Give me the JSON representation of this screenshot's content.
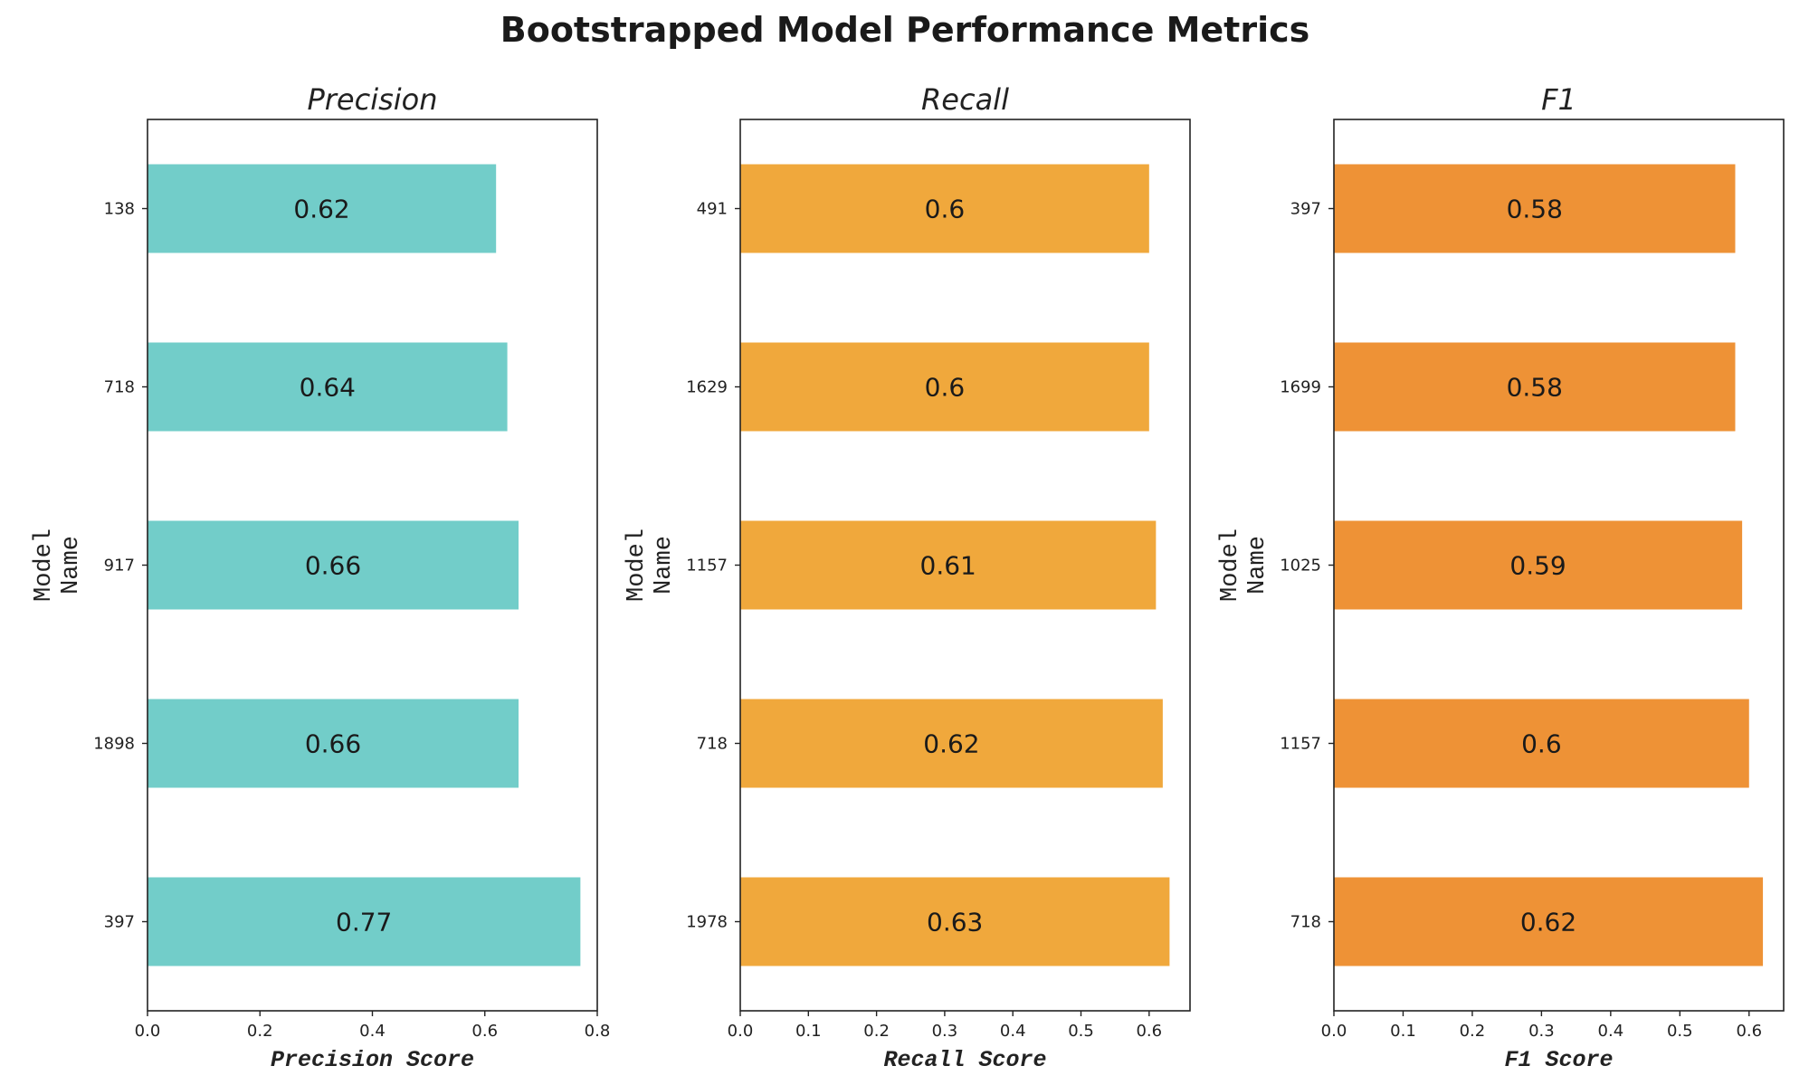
{
  "title": "Bootstrapped Model Performance Metrics",
  "chart_data": [
    {
      "type": "bar",
      "orientation": "horizontal",
      "title": "Precision",
      "xlabel": "Precision Score",
      "ylabel": "Model Name",
      "xlim": [
        0,
        0.8
      ],
      "xticks": [
        "0.0",
        "0.2",
        "0.4",
        "0.6",
        "0.8"
      ],
      "categories": [
        "138",
        "718",
        "917",
        "1898",
        "397"
      ],
      "values": [
        0.62,
        0.64,
        0.66,
        0.66,
        0.77
      ],
      "data_labels": [
        "0.62",
        "0.64",
        "0.66",
        "0.66",
        "0.77"
      ],
      "color": "#72cdc9",
      "grid": false
    },
    {
      "type": "bar",
      "orientation": "horizontal",
      "title": "Recall",
      "xlabel": "Recall Score",
      "ylabel": "Model Name",
      "xlim": [
        0,
        0.66
      ],
      "xticks": [
        "0.0",
        "0.1",
        "0.2",
        "0.3",
        "0.4",
        "0.5",
        "0.6"
      ],
      "categories": [
        "491",
        "1629",
        "1157",
        "718",
        "1978"
      ],
      "values": [
        0.6,
        0.6,
        0.61,
        0.62,
        0.63
      ],
      "data_labels": [
        "0.6",
        "0.6",
        "0.61",
        "0.62",
        "0.63"
      ],
      "color": "#f0a83c",
      "grid": false
    },
    {
      "type": "bar",
      "orientation": "horizontal",
      "title": "F1",
      "xlabel": "F1 Score",
      "ylabel": "Model Name",
      "xlim": [
        0,
        0.65
      ],
      "xticks": [
        "0.0",
        "0.1",
        "0.2",
        "0.3",
        "0.4",
        "0.5",
        "0.6"
      ],
      "categories": [
        "397",
        "1699",
        "1025",
        "1157",
        "718"
      ],
      "values": [
        0.58,
        0.58,
        0.59,
        0.6,
        0.62
      ],
      "data_labels": [
        "0.58",
        "0.58",
        "0.59",
        "0.6",
        "0.62"
      ],
      "color": "#ee9236",
      "grid": false
    }
  ]
}
